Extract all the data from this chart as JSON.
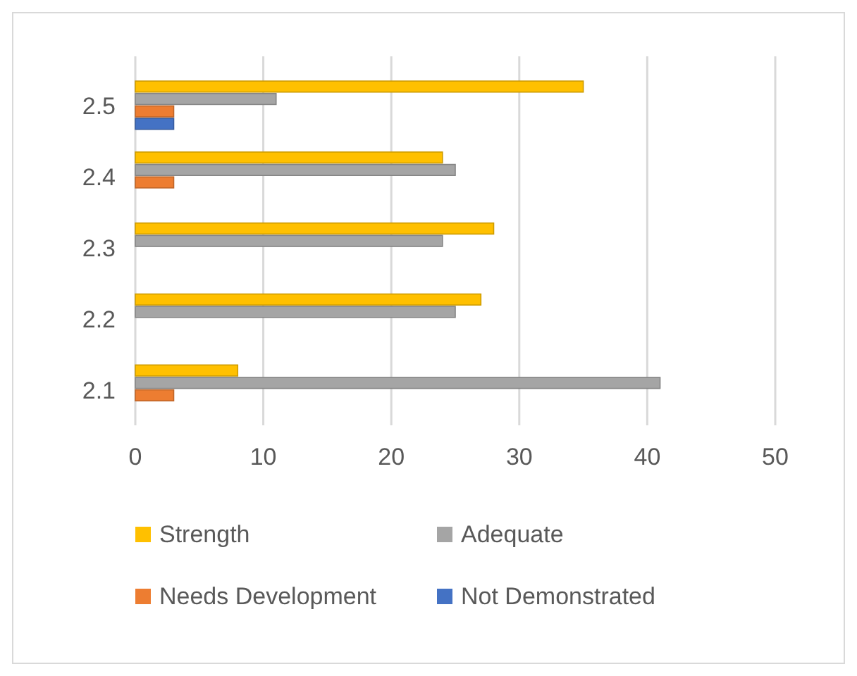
{
  "chart_data": {
    "type": "bar",
    "orientation": "horizontal",
    "categories": [
      "2.5",
      "2.4",
      "2.3",
      "2.2",
      "2.1"
    ],
    "series": [
      {
        "name": "Strength",
        "color": "#ffc000",
        "values": [
          35,
          24,
          28,
          27,
          8
        ]
      },
      {
        "name": "Adequate",
        "color": "#a5a5a5",
        "values": [
          11,
          25,
          24,
          25,
          41
        ]
      },
      {
        "name": "Needs Development",
        "color": "#ed7d31",
        "values": [
          3,
          3,
          0,
          0,
          3
        ]
      },
      {
        "name": "Not Demonstrated",
        "color": "#4472c4",
        "values": [
          3,
          0,
          0,
          0,
          0
        ]
      }
    ],
    "xlim": [
      0,
      50
    ],
    "xticks": [
      0,
      10,
      20,
      30,
      40,
      50
    ],
    "grid": "x",
    "legend": "bottom"
  }
}
